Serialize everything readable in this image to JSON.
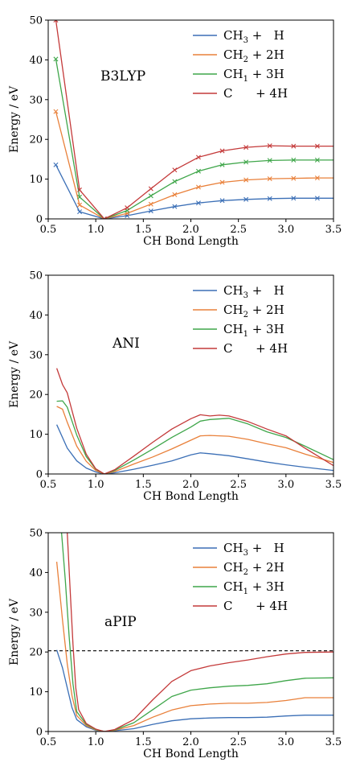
{
  "colors": {
    "CH3_H": "#3b6fb6",
    "CH2_2H": "#e9803a",
    "CH1_3H": "#3fa64a",
    "C_4H": "#c43a3a"
  },
  "legend": [
    {
      "key": "CH3_H",
      "main": "CH",
      "sub": "3",
      "rest": " +   H"
    },
    {
      "key": "CH2_2H",
      "main": "CH",
      "sub": "2",
      "rest": " + 2H"
    },
    {
      "key": "CH1_3H",
      "main": "CH",
      "sub": "1",
      "rest": " + 3H"
    },
    {
      "key": "C_4H",
      "main": "C",
      "sub": "",
      "rest": "      + 4H"
    }
  ],
  "chart_data": [
    {
      "type": "line",
      "panel_label": "B3LYP",
      "xlabel": "CH Bond Length",
      "ylabel": "Energy / eV",
      "xlim": [
        0.5,
        3.5
      ],
      "ylim": [
        0,
        50
      ],
      "xticks": [
        "0.5",
        "1.0",
        "1.5",
        "2.0",
        "2.5",
        "3.0",
        "3.5"
      ],
      "yticks": [
        "0",
        "10",
        "20",
        "30",
        "40",
        "50"
      ],
      "markers": "x",
      "series": [
        {
          "key": "CH3_H",
          "x": [
            0.58,
            0.83,
            1.09,
            1.33,
            1.58,
            1.83,
            2.08,
            2.33,
            2.58,
            2.83,
            3.08,
            3.33,
            3.5
          ],
          "y": [
            13.6,
            1.8,
            0.0,
            0.8,
            2.0,
            3.1,
            4.0,
            4.6,
            4.9,
            5.1,
            5.2,
            5.2,
            5.2
          ]
        },
        {
          "key": "CH2_2H",
          "x": [
            0.58,
            0.83,
            1.09,
            1.33,
            1.58,
            1.83,
            2.08,
            2.33,
            2.58,
            2.83,
            3.08,
            3.33,
            3.5
          ],
          "y": [
            27.0,
            3.5,
            0.0,
            1.4,
            3.7,
            6.1,
            8.0,
            9.2,
            9.8,
            10.1,
            10.2,
            10.3,
            10.3
          ]
        },
        {
          "key": "CH1_3H",
          "x": [
            0.58,
            0.83,
            1.09,
            1.33,
            1.58,
            1.83,
            2.08,
            2.33,
            2.58,
            2.83,
            3.08,
            3.33,
            3.5
          ],
          "y": [
            40.2,
            5.5,
            0.0,
            2.1,
            5.8,
            9.4,
            12.0,
            13.6,
            14.3,
            14.7,
            14.8,
            14.8,
            14.8
          ]
        },
        {
          "key": "C_4H",
          "x": [
            0.58,
            0.83,
            1.09,
            1.33,
            1.58,
            1.83,
            2.08,
            2.33,
            2.58,
            2.83,
            3.08,
            3.33,
            3.5
          ],
          "y": [
            50.0,
            7.3,
            0.0,
            2.8,
            7.6,
            12.3,
            15.5,
            17.1,
            18.0,
            18.4,
            18.3,
            18.3,
            18.3
          ]
        }
      ]
    },
    {
      "type": "line",
      "panel_label": "ANI",
      "xlabel": "CH Bond Length",
      "ylabel": "Energy / eV",
      "xlim": [
        0.5,
        3.5
      ],
      "ylim": [
        0,
        50
      ],
      "xticks": [
        "0.5",
        "1.0",
        "1.5",
        "2.0",
        "2.5",
        "3.0",
        "3.5"
      ],
      "yticks": [
        "0",
        "10",
        "20",
        "30",
        "40",
        "50"
      ],
      "markers": "none",
      "series": [
        {
          "key": "CH3_H",
          "x": [
            0.59,
            0.7,
            0.8,
            0.9,
            1.0,
            1.09,
            1.2,
            1.4,
            1.6,
            1.8,
            2.0,
            2.1,
            2.2,
            2.4,
            2.6,
            2.8,
            3.0,
            3.2,
            3.5
          ],
          "y": [
            12.4,
            6.5,
            3.3,
            1.5,
            0.5,
            0.0,
            0.3,
            1.2,
            2.2,
            3.3,
            4.8,
            5.3,
            5.1,
            4.6,
            3.8,
            3.0,
            2.3,
            1.7,
            0.9
          ]
        },
        {
          "key": "CH2_2H",
          "x": [
            0.59,
            0.65,
            0.7,
            0.8,
            0.9,
            1.0,
            1.09,
            1.2,
            1.4,
            1.6,
            1.8,
            2.0,
            2.1,
            2.2,
            2.4,
            2.6,
            2.8,
            3.0,
            3.2,
            3.5
          ],
          "y": [
            17.0,
            16.3,
            13.0,
            7.0,
            3.2,
            0.9,
            0.0,
            0.6,
            2.5,
            4.3,
            6.3,
            8.5,
            9.6,
            9.7,
            9.5,
            8.7,
            7.6,
            6.6,
            5.0,
            2.9
          ]
        },
        {
          "key": "CH1_3H",
          "x": [
            0.59,
            0.65,
            0.7,
            0.8,
            0.9,
            1.0,
            1.09,
            1.2,
            1.4,
            1.6,
            1.8,
            2.0,
            2.1,
            2.2,
            2.4,
            2.6,
            2.8,
            3.0,
            3.2,
            3.5
          ],
          "y": [
            18.3,
            18.4,
            16.8,
            9.8,
            4.4,
            1.2,
            0.0,
            0.9,
            3.5,
            6.3,
            9.2,
            11.8,
            13.3,
            13.7,
            14.0,
            12.6,
            10.6,
            9.2,
            7.0,
            3.6
          ]
        },
        {
          "key": "C_4H",
          "x": [
            0.59,
            0.65,
            0.7,
            0.8,
            0.9,
            1.0,
            1.09,
            1.2,
            1.4,
            1.6,
            1.8,
            2.0,
            2.1,
            2.2,
            2.3,
            2.4,
            2.6,
            2.8,
            3.0,
            3.2,
            3.5
          ],
          "y": [
            26.6,
            22.5,
            20.4,
            11.5,
            5.0,
            1.3,
            0.0,
            1.1,
            4.5,
            8.0,
            11.3,
            13.9,
            14.9,
            14.6,
            14.8,
            14.6,
            13.2,
            11.3,
            9.6,
            6.5,
            2.1
          ]
        }
      ]
    },
    {
      "type": "line",
      "panel_label": "aPIP",
      "xlabel": "CH Bond Length",
      "ylabel": "Energy / eV",
      "xlim": [
        0.5,
        3.5
      ],
      "ylim": [
        0,
        50
      ],
      "xticks": [
        "0.5",
        "1.0",
        "1.5",
        "2.0",
        "2.5",
        "3.0",
        "3.5"
      ],
      "yticks": [
        "0",
        "10",
        "20",
        "30",
        "40",
        "50"
      ],
      "markers": "none",
      "hline": {
        "y": 20.3,
        "style": "dashed",
        "color": "#000000"
      },
      "series": [
        {
          "key": "CH3_H",
          "x": [
            0.59,
            0.65,
            0.7,
            0.75,
            0.8,
            0.9,
            1.0,
            1.09,
            1.2,
            1.4,
            1.6,
            1.8,
            2.0,
            2.2,
            2.4,
            2.6,
            2.8,
            3.0,
            3.2,
            3.5
          ],
          "y": [
            20.5,
            16.0,
            11.0,
            6.0,
            3.0,
            1.2,
            0.3,
            0.0,
            0.2,
            0.7,
            1.8,
            2.7,
            3.2,
            3.4,
            3.5,
            3.5,
            3.6,
            3.9,
            4.1,
            4.1
          ]
        },
        {
          "key": "CH2_2H",
          "x": [
            0.59,
            0.65,
            0.7,
            0.75,
            0.8,
            0.9,
            1.0,
            1.09,
            1.2,
            1.4,
            1.6,
            1.8,
            2.0,
            2.2,
            2.4,
            2.6,
            2.8,
            3.0,
            3.2,
            3.5
          ],
          "y": [
            42.7,
            28.0,
            17.0,
            9.0,
            4.0,
            1.5,
            0.4,
            0.0,
            0.3,
            1.5,
            3.6,
            5.4,
            6.5,
            6.9,
            7.1,
            7.1,
            7.3,
            7.8,
            8.5,
            8.5
          ]
        },
        {
          "key": "CH1_3H",
          "x": [
            0.64,
            0.68,
            0.72,
            0.76,
            0.8,
            0.9,
            1.0,
            1.09,
            1.2,
            1.4,
            1.6,
            1.8,
            2.0,
            2.2,
            2.4,
            2.6,
            2.8,
            3.0,
            3.2,
            3.5
          ],
          "y": [
            50.0,
            38.0,
            24.0,
            12.0,
            5.0,
            1.8,
            0.5,
            0.0,
            0.4,
            2.2,
            5.5,
            8.8,
            10.4,
            11.0,
            11.4,
            11.6,
            12.0,
            12.8,
            13.4,
            13.5
          ]
        },
        {
          "key": "C_4H",
          "x": [
            0.7,
            0.73,
            0.76,
            0.79,
            0.82,
            0.9,
            1.0,
            1.09,
            1.2,
            1.4,
            1.6,
            1.8,
            2.0,
            2.2,
            2.4,
            2.6,
            2.8,
            3.0,
            3.2,
            3.5
          ],
          "y": [
            50.0,
            36.0,
            22.0,
            11.0,
            5.5,
            2.0,
            0.6,
            0.0,
            0.5,
            3.0,
            8.0,
            12.6,
            15.3,
            16.5,
            17.3,
            18.0,
            18.8,
            19.5,
            19.9,
            20.0
          ]
        }
      ]
    }
  ]
}
